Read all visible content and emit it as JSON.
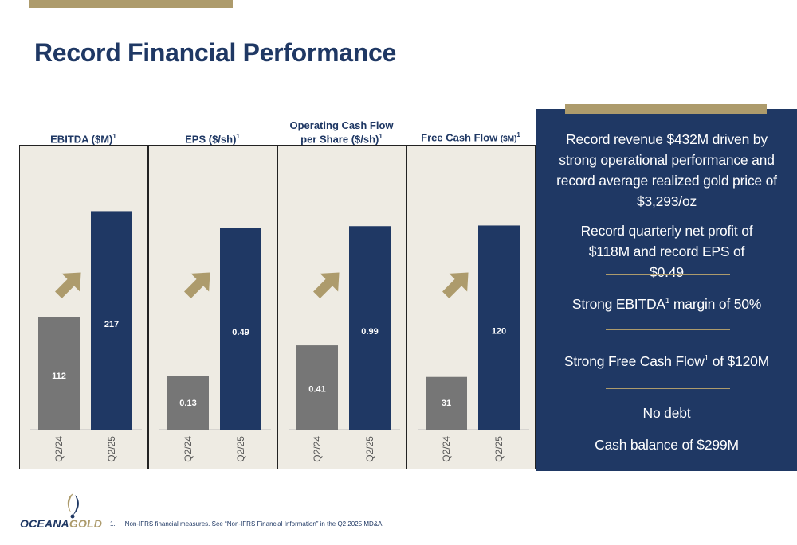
{
  "page": {
    "title": "Record Financial Performance"
  },
  "colors": {
    "navy": "#1f3864",
    "gold": "#ad9b6c",
    "gray_bar": "#767676",
    "chart_bg": "#eeebe3"
  },
  "headers": [
    {
      "line1": "",
      "line2": "EBITDA ($M)",
      "line2_small": "",
      "sup": "1"
    },
    {
      "line1": "",
      "line2": "EPS ($/sh)",
      "line2_small": "",
      "sup": "1"
    },
    {
      "line1": "Operating Cash Flow",
      "line2": "per Share ($/sh)",
      "line2_small": "",
      "sup": "1"
    },
    {
      "line1": "",
      "line2": "Free Cash Flow ",
      "line2_small": "($M)",
      "sup": "1"
    }
  ],
  "chart_data": [
    {
      "type": "bar",
      "title": "EBITDA ($M)",
      "categories": [
        "Q2/24",
        "Q2/25"
      ],
      "values": [
        112,
        217
      ],
      "labels": [
        "112",
        "217"
      ],
      "ylim": [
        0,
        245
      ]
    },
    {
      "type": "bar",
      "title": "EPS ($/sh)",
      "categories": [
        "Q2/24",
        "Q2/25"
      ],
      "values": [
        0.13,
        0.49
      ],
      "labels": [
        "0.13",
        "0.49"
      ],
      "ylim": [
        0,
        0.6
      ]
    },
    {
      "type": "bar",
      "title": "Operating Cash Flow per Share ($/sh)",
      "categories": [
        "Q2/24",
        "Q2/25"
      ],
      "values": [
        0.41,
        0.99
      ],
      "labels": [
        "0.41",
        "0.99"
      ],
      "ylim": [
        0,
        1.2
      ]
    },
    {
      "type": "bar",
      "title": "Free Cash Flow ($M)",
      "categories": [
        "Q2/24",
        "Q2/25"
      ],
      "values": [
        31,
        120
      ],
      "labels": [
        "31",
        "120"
      ],
      "ylim": [
        0,
        145
      ]
    }
  ],
  "highlights": [
    {
      "text": "Record revenue $432M driven by strong operational performance and record average realized gold price of $3,293/oz"
    },
    {
      "text": "Record quarterly net profit of $118M and record EPS of $0.49"
    },
    {
      "pre": "Strong EBITDA",
      "sup": "1",
      "post": " margin of 50%"
    },
    {
      "pre": "Strong Free Cash Flow",
      "sup": "1",
      "post": " of $120M"
    },
    {
      "text": "No debt"
    },
    {
      "text": "Cash balance of $299M"
    }
  ],
  "logo": {
    "part1": "OCEANA",
    "part2": "GOLD"
  },
  "footnote": {
    "number": "1.",
    "text": "Non-IFRS financial measures. See “Non-IFRS Financial Information” in the Q2 2025 MD&A."
  }
}
